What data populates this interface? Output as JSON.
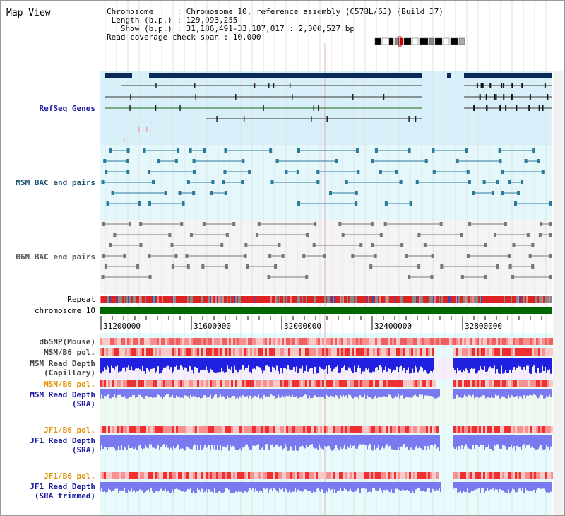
{
  "header": {
    "title": "Map View",
    "info_lines": [
      "Chromosome     : Chromosome 10, reference assembly (C57BL/6J) (Build 37)",
      " Length (b.p.) : 129,993,255",
      "   Show (b.p.) : 31,186,491-33,187,017 : 2,000,527 bp",
      "Read coverage check span : 10,000"
    ]
  },
  "tracks": {
    "refseq": {
      "label": "RefSeq Genes",
      "color": "#1a1aa0"
    },
    "msm_bac": {
      "label": "MSM BAC end pairs",
      "color": "#1a5070"
    },
    "b6n_bac": {
      "label": "B6N BAC end pairs",
      "color": "#555555"
    },
    "repeat": {
      "label": "Repeat"
    },
    "chromosome": {
      "label": "chromosome 10"
    },
    "dbsnp": {
      "label": "dbSNP(Mouse)",
      "color": "#444444"
    },
    "msm_pol1": {
      "label": "MSM/B6 pol.",
      "color": "#444444"
    },
    "msm_depth_cap": {
      "line1": "MSM Read Depth",
      "line2": "(Capillary)",
      "color": "#444444"
    },
    "msm_pol2": {
      "label": "MSM/B6 pol.",
      "color": "#e09000"
    },
    "msm_depth_sra": {
      "line1": "MSM Read Depth",
      "line2": "(SRA)",
      "color": "#1a1aa0"
    },
    "jf1_pol1": {
      "label": "JF1/B6 pol.",
      "color": "#e09000"
    },
    "jf1_depth_sra": {
      "line1": "JF1 Read Depth",
      "line2": "(SRA)",
      "color": "#1a1aa0"
    },
    "jf1_pol2": {
      "label": "JF1/B6 pol.",
      "color": "#e09000"
    },
    "jf1_depth_trim": {
      "line1": "JF1 Read Depth",
      "line2": "(SRA trimmed)",
      "color": "#1a1aa0"
    }
  },
  "axis": {
    "ticks": [
      "31200000",
      "31600000",
      "32000000",
      "32400000",
      "32800000"
    ]
  },
  "colors": {
    "refseq_bg": "#d8f0fa",
    "msm_bg": "#e4f8fc",
    "b6n_bg": "#f4f4f4",
    "chromosome_bar": "#006600",
    "depth_blue": "#2020e0",
    "depth_light": "#7a7af0",
    "pol_red": "#f03030"
  }
}
